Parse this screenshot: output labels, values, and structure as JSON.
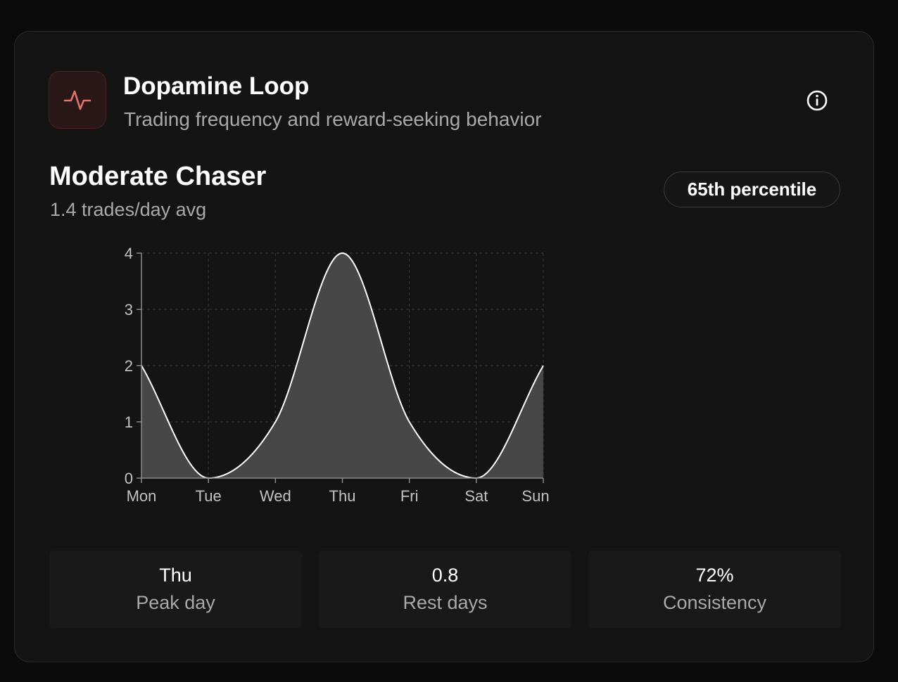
{
  "card": {
    "title": "Dopamine Loop",
    "subtitle": "Trading frequency and reward-seeking behavior",
    "icon": "activity-pulse-icon",
    "info_icon": "info-circle-icon",
    "accent_color": "#e0736b"
  },
  "profile": {
    "label": "Moderate Chaser",
    "stat_line": "1.4 trades/day avg",
    "percentile": "65th percentile"
  },
  "chart_data": {
    "type": "area",
    "categories": [
      "Mon",
      "Tue",
      "Wed",
      "Thu",
      "Fri",
      "Sat",
      "Sun"
    ],
    "values": [
      2,
      0,
      1,
      4,
      1,
      0,
      2
    ],
    "yticks": [
      0,
      1,
      2,
      3,
      4
    ],
    "ylim": [
      0,
      4
    ],
    "grid": true,
    "line_color": "#ffffff",
    "fill_color": "#474747"
  },
  "stats": [
    {
      "value": "Thu",
      "label": "Peak day"
    },
    {
      "value": "0.8",
      "label": "Rest days"
    },
    {
      "value": "72%",
      "label": "Consistency"
    }
  ]
}
